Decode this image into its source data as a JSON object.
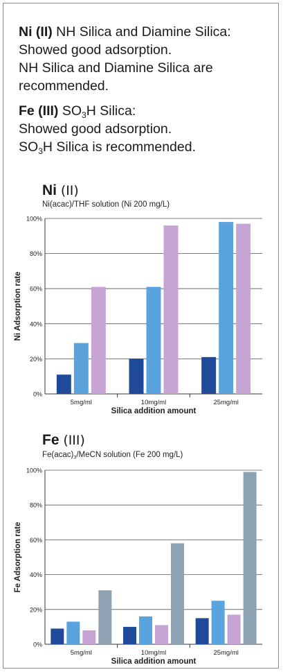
{
  "intro": {
    "ni_label": "Ni (II)",
    "ni_line1": " NH Silica and Diamine Silica:",
    "ni_line2": "Showed good adsorption.",
    "ni_line3": "NH Silica and Diamine Silica are",
    "ni_line4": "recommended.",
    "fe_label": "Fe (III)",
    "fe_line1_pre": " SO",
    "fe_line1_sub": "3",
    "fe_line1_post": "H Silica:",
    "fe_line2": "Showed good adsorption.",
    "fe_line3_pre": "SO",
    "fe_line3_sub": "3",
    "fe_line3_post": "H Silica is recommended."
  },
  "charts": {
    "ni": {
      "title_element": "Ni",
      "title_roman": "(II)",
      "subtitle": "Ni(acac)/THF solution (Ni 200 mg/L)"
    },
    "fe": {
      "title_element": "Fe",
      "title_roman": "(III)",
      "subtitle_pre": "Fe(acac)",
      "subtitle_sub": "3",
      "subtitle_post": "/MeCN solution (Fe 200 mg/L)"
    }
  },
  "chart_data": [
    {
      "type": "bar",
      "title": "Ni (II)",
      "subtitle": "Ni(acac)/THF solution (Ni 200 mg/L)",
      "xlabel": "Silica addition amount",
      "ylabel": "Ni Adsorption rate",
      "categories": [
        "5mg/ml",
        "10mg/ml",
        "25mg/ml"
      ],
      "ylim": [
        0,
        100
      ],
      "yticks": [
        "0%",
        "20%",
        "40%",
        "60%",
        "80%",
        "100%"
      ],
      "grid": true,
      "series": [
        {
          "color": "#1f4a99",
          "values": [
            11,
            20,
            21
          ]
        },
        {
          "color": "#5ba3dd",
          "values": [
            29,
            61,
            98
          ]
        },
        {
          "color": "#c6a5d4",
          "values": [
            61,
            96,
            97
          ]
        }
      ]
    },
    {
      "type": "bar",
      "title": "Fe (III)",
      "subtitle": "Fe(acac)3/MeCN solution (Fe 200 mg/L)",
      "xlabel": "Silica addition amount",
      "ylabel": "Fe Adsorption rate",
      "categories": [
        "5mg/ml",
        "10mg/ml",
        "25mg/ml"
      ],
      "ylim": [
        0,
        100
      ],
      "yticks": [
        "0%",
        "20%",
        "40%",
        "60%",
        "80%",
        "100%"
      ],
      "grid": true,
      "series": [
        {
          "color": "#1f4a99",
          "values": [
            9,
            10,
            15
          ]
        },
        {
          "color": "#5ba3dd",
          "values": [
            13,
            16,
            25
          ]
        },
        {
          "color": "#c6a5d4",
          "values": [
            8,
            11,
            17
          ]
        },
        {
          "color": "#8da3b4",
          "values": [
            31,
            58,
            99
          ]
        }
      ]
    }
  ]
}
